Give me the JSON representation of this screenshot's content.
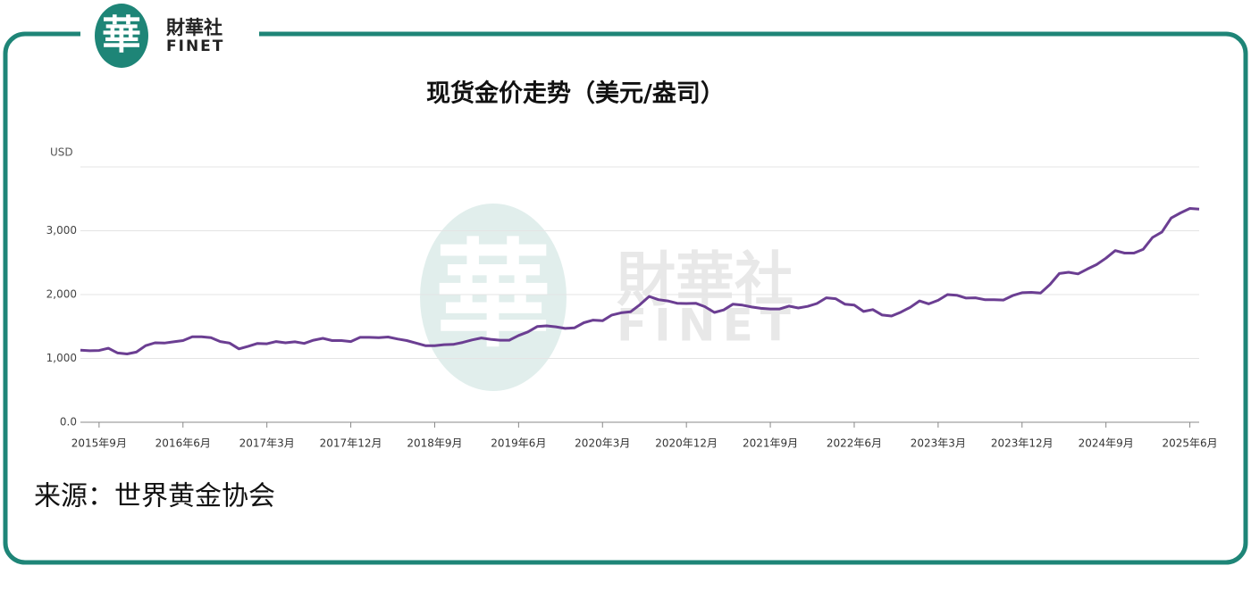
{
  "logo": {
    "mark": "華",
    "name": "財華社",
    "sub": "FINET"
  },
  "source": "来源：世界黄金协会",
  "chart_data": {
    "type": "line",
    "title": "现货金价走势（美元/盎司）",
    "y_label": "USD",
    "ylim": [
      0,
      4000
    ],
    "yticks": [
      {
        "value": 0,
        "label": "0.0"
      },
      {
        "value": 1000,
        "label": "1,000"
      },
      {
        "value": 2000,
        "label": "2,000"
      },
      {
        "value": 3000,
        "label": "3,000"
      }
    ],
    "xlim": [
      "2015-07",
      "2025-07"
    ],
    "xticks": [
      {
        "value": "2015-09",
        "label": "2015年9月"
      },
      {
        "value": "2016-06",
        "label": "2016年6月"
      },
      {
        "value": "2017-03",
        "label": "2017年3月"
      },
      {
        "value": "2017-12",
        "label": "2017年12月"
      },
      {
        "value": "2018-09",
        "label": "2018年9月"
      },
      {
        "value": "2019-06",
        "label": "2019年6月"
      },
      {
        "value": "2020-03",
        "label": "2020年3月"
      },
      {
        "value": "2020-12",
        "label": "2020年12月"
      },
      {
        "value": "2021-09",
        "label": "2021年9月"
      },
      {
        "value": "2022-06",
        "label": "2022年6月"
      },
      {
        "value": "2023-03",
        "label": "2023年3月"
      },
      {
        "value": "2023-12",
        "label": "2023年12月"
      },
      {
        "value": "2024-09",
        "label": "2024年9月"
      },
      {
        "value": "2025-06",
        "label": "2025年6月"
      }
    ],
    "grid": true,
    "x": [
      "2015-07",
      "2015-08",
      "2015-09",
      "2015-10",
      "2015-11",
      "2015-12",
      "2016-01",
      "2016-02",
      "2016-03",
      "2016-04",
      "2016-05",
      "2016-06",
      "2016-07",
      "2016-08",
      "2016-09",
      "2016-10",
      "2016-11",
      "2016-12",
      "2017-01",
      "2017-02",
      "2017-03",
      "2017-04",
      "2017-05",
      "2017-06",
      "2017-07",
      "2017-08",
      "2017-09",
      "2017-10",
      "2017-11",
      "2017-12",
      "2018-01",
      "2018-02",
      "2018-03",
      "2018-04",
      "2018-05",
      "2018-06",
      "2018-07",
      "2018-08",
      "2018-09",
      "2018-10",
      "2018-11",
      "2018-12",
      "2019-01",
      "2019-02",
      "2019-03",
      "2019-04",
      "2019-05",
      "2019-06",
      "2019-07",
      "2019-08",
      "2019-09",
      "2019-10",
      "2019-11",
      "2019-12",
      "2020-01",
      "2020-02",
      "2020-03",
      "2020-04",
      "2020-05",
      "2020-06",
      "2020-07",
      "2020-08",
      "2020-09",
      "2020-10",
      "2020-11",
      "2020-12",
      "2021-01",
      "2021-02",
      "2021-03",
      "2021-04",
      "2021-05",
      "2021-06",
      "2021-07",
      "2021-08",
      "2021-09",
      "2021-10",
      "2021-11",
      "2021-12",
      "2022-01",
      "2022-02",
      "2022-03",
      "2022-04",
      "2022-05",
      "2022-06",
      "2022-07",
      "2022-08",
      "2022-09",
      "2022-10",
      "2022-11",
      "2022-12",
      "2023-01",
      "2023-02",
      "2023-03",
      "2023-04",
      "2023-05",
      "2023-06",
      "2023-07",
      "2023-08",
      "2023-09",
      "2023-10",
      "2023-11",
      "2023-12",
      "2024-01",
      "2024-02",
      "2024-03",
      "2024-04",
      "2024-05",
      "2024-06",
      "2024-07",
      "2024-08",
      "2024-09",
      "2024-10",
      "2024-11",
      "2024-12",
      "2025-01",
      "2025-02",
      "2025-03",
      "2025-04",
      "2025-05",
      "2025-06",
      "2025-07"
    ],
    "series": [
      {
        "color": "#6b3e92",
        "values": [
          1130,
          1120,
          1125,
          1160,
          1085,
          1070,
          1100,
          1200,
          1245,
          1240,
          1260,
          1280,
          1340,
          1340,
          1325,
          1265,
          1240,
          1150,
          1190,
          1235,
          1230,
          1265,
          1245,
          1260,
          1235,
          1285,
          1315,
          1280,
          1280,
          1265,
          1330,
          1330,
          1325,
          1335,
          1305,
          1280,
          1240,
          1200,
          1200,
          1215,
          1220,
          1250,
          1290,
          1320,
          1300,
          1285,
          1285,
          1360,
          1415,
          1500,
          1510,
          1495,
          1470,
          1480,
          1560,
          1600,
          1590,
          1680,
          1715,
          1730,
          1840,
          1970,
          1920,
          1900,
          1865,
          1860,
          1865,
          1810,
          1720,
          1760,
          1850,
          1835,
          1805,
          1785,
          1775,
          1775,
          1820,
          1790,
          1815,
          1860,
          1950,
          1935,
          1850,
          1835,
          1735,
          1765,
          1680,
          1665,
          1725,
          1800,
          1900,
          1855,
          1910,
          2000,
          1990,
          1945,
          1950,
          1920,
          1920,
          1915,
          1985,
          2030,
          2035,
          2025,
          2160,
          2330,
          2350,
          2325,
          2400,
          2470,
          2570,
          2690,
          2650,
          2650,
          2710,
          2895,
          2980,
          3200,
          3280,
          3350,
          3340
        ]
      }
    ]
  }
}
